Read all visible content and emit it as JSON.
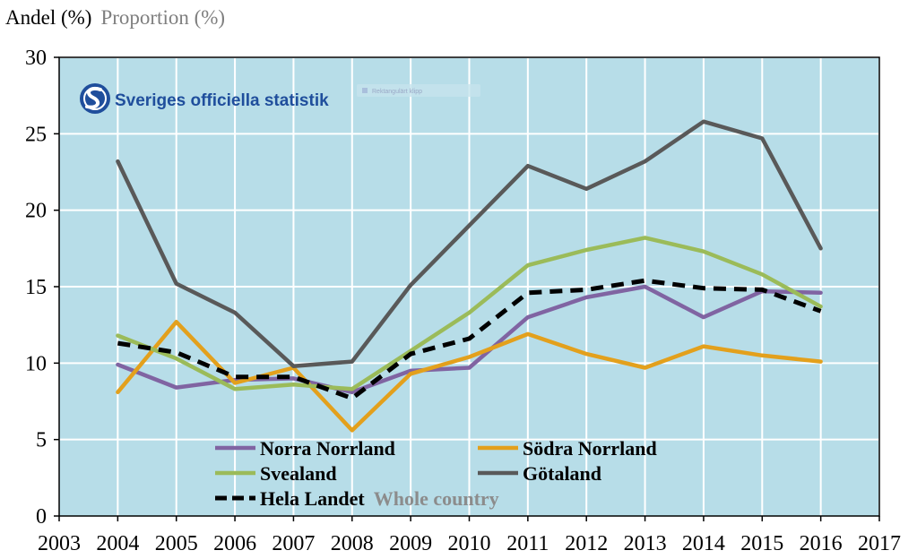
{
  "chart_data": {
    "type": "line",
    "ylabel": "Andel (%)",
    "ylabel_sub": "Proportion (%)",
    "xlim": [
      2003,
      2017
    ],
    "ylim": [
      0,
      30
    ],
    "yticks": [
      0,
      5,
      10,
      15,
      20,
      25,
      30
    ],
    "xticks": [
      2003,
      2004,
      2005,
      2006,
      2007,
      2008,
      2009,
      2010,
      2011,
      2012,
      2013,
      2014,
      2015,
      2016,
      2017
    ],
    "grid": true,
    "background": "#b7dde8",
    "x": [
      2004,
      2005,
      2006,
      2007,
      2008,
      2009,
      2010,
      2011,
      2012,
      2013,
      2014,
      2015,
      2016
    ],
    "series": [
      {
        "name": "Norra Norrland",
        "color": "#8064a2",
        "dashed": false,
        "values": [
          9.9,
          8.4,
          8.9,
          9.0,
          8.1,
          9.5,
          9.7,
          13.0,
          14.3,
          15.0,
          13.0,
          14.7,
          14.6
        ]
      },
      {
        "name": "Södra Norrland",
        "color": "#e3a01c",
        "dashed": false,
        "values": [
          8.1,
          12.7,
          8.7,
          9.7,
          5.6,
          9.3,
          10.4,
          11.9,
          10.6,
          9.7,
          11.1,
          10.5,
          10.1
        ]
      },
      {
        "name": "Svealand",
        "color": "#9bbb59",
        "dashed": false,
        "values": [
          11.8,
          10.3,
          8.3,
          8.6,
          8.3,
          10.8,
          13.3,
          16.4,
          17.4,
          18.2,
          17.3,
          15.8,
          13.7
        ]
      },
      {
        "name": "Götaland",
        "color": "#595959",
        "dashed": false,
        "values": [
          23.2,
          15.2,
          13.3,
          9.8,
          10.1,
          15.1,
          19.0,
          22.9,
          21.4,
          23.2,
          25.8,
          24.7,
          17.5
        ]
      },
      {
        "name": "Hela Landet",
        "name_sub": "Whole country",
        "color": "#000000",
        "dashed": true,
        "values": [
          11.3,
          10.7,
          9.1,
          9.1,
          7.7,
          10.6,
          11.6,
          14.6,
          14.8,
          15.4,
          14.9,
          14.8,
          13.4
        ]
      }
    ]
  },
  "logo": {
    "text": "Sveriges officiella statistik",
    "color": "#1f4e9c"
  },
  "snip_widget": {
    "text": "Rektangulärt klipp"
  }
}
